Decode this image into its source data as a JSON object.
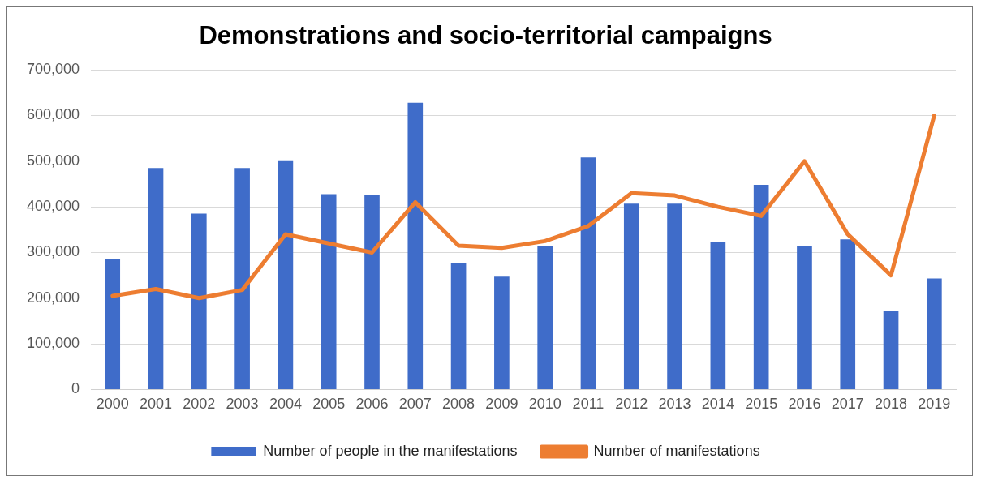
{
  "chart_data": {
    "type": "bar",
    "title": "Demonstrations and socio-territorial campaigns",
    "categories": [
      "2000",
      "2001",
      "2002",
      "2003",
      "2004",
      "2005",
      "2006",
      "2007",
      "2008",
      "2009",
      "2010",
      "2011",
      "2012",
      "2013",
      "2014",
      "2015",
      "2016",
      "2017",
      "2018",
      "2019"
    ],
    "series": [
      {
        "name": "Number of people in the manifestations",
        "color": "#3f6cc9",
        "values": [
          285000,
          485000,
          385000,
          485000,
          502000,
          428000,
          426000,
          628000,
          276000,
          247000,
          315000,
          508000,
          407000,
          407000,
          323000,
          448000,
          315000,
          329000,
          173000,
          243000
        ]
      },
      {
        "name": "Number of manifestations",
        "type": "line",
        "color": "#ed7d31",
        "values": [
          205000,
          220000,
          200000,
          218000,
          340000,
          320000,
          300000,
          410000,
          315000,
          310000,
          325000,
          358000,
          430000,
          425000,
          400000,
          380000,
          500000,
          340000,
          250000,
          600000
        ]
      }
    ],
    "ylim": [
      0,
      700000
    ],
    "yticks": [
      0,
      {
        "value": 100000,
        "label": "100,000"
      },
      {
        "value": 200000,
        "label": "200,000"
      },
      {
        "value": 300000,
        "label": "300,000"
      },
      {
        "value": 400000,
        "label": "400,000"
      },
      {
        "value": 500000,
        "label": "500,000"
      },
      {
        "value": 600000,
        "label": "600,000"
      },
      {
        "value": 700000,
        "label": "700,000"
      }
    ],
    "grid": "y",
    "legend": "bottom",
    "marker": "none"
  }
}
